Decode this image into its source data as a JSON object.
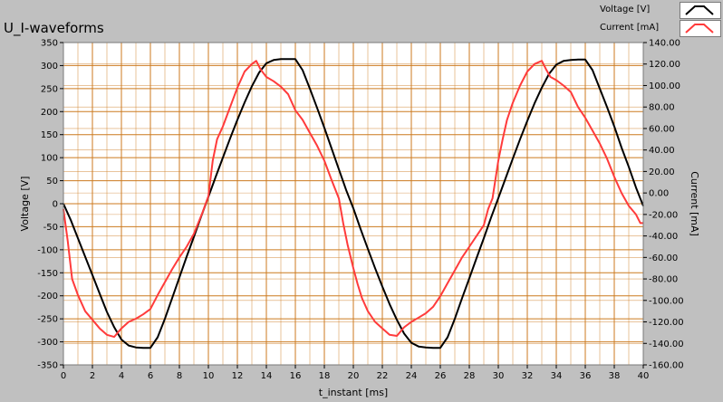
{
  "colors": {
    "background": "#c0c0c0",
    "plot_bg": "#ffffff",
    "grid": "#cc7a1f",
    "voltage": "#000000",
    "current": "#ff3b3b"
  },
  "chart_data": {
    "type": "line",
    "title": "U_I-waveforms",
    "xlabel": "t_instant [ms]",
    "ylabel": "Voltage [V]",
    "y2label": "Current [mA]",
    "xlim": [
      0,
      40
    ],
    "ylim": [
      -350,
      350
    ],
    "y2lim": [
      -160,
      140
    ],
    "x_ticks": [
      "0",
      "2",
      "4",
      "6",
      "8",
      "10",
      "12",
      "14",
      "16",
      "18",
      "20",
      "22",
      "24",
      "26",
      "28",
      "30",
      "32",
      "34",
      "36",
      "38",
      "40"
    ],
    "y_ticks": [
      "350",
      "300",
      "250",
      "200",
      "150",
      "100",
      "50",
      "0",
      "-50",
      "-100",
      "-150",
      "-200",
      "-250",
      "-300",
      "-350"
    ],
    "y2_ticks": [
      "140.00",
      "120.00",
      "100.00",
      "80.00",
      "60.00",
      "40.00",
      "20.00",
      "0.00",
      "-20.00",
      "-40.00",
      "-60.00",
      "-80.00",
      "-100.00",
      "-120.00",
      "-140.00",
      "-160.00"
    ],
    "legend_placement": "top-right",
    "grid": true,
    "series": [
      {
        "name": "Voltage [V]",
        "axis": "left",
        "x": [
          0,
          0.5,
          1,
          1.5,
          2,
          2.5,
          3,
          3.5,
          4,
          4.5,
          5,
          5.5,
          6,
          6.5,
          7,
          7.5,
          8,
          8.5,
          9,
          9.5,
          10,
          10.5,
          11,
          11.5,
          12,
          12.5,
          13,
          13.5,
          14,
          14.5,
          15,
          15.5,
          16,
          16.5,
          17,
          17.5,
          18,
          18.5,
          19,
          19.5,
          20,
          20.5,
          21,
          21.5,
          22,
          22.5,
          23,
          23.5,
          24,
          24.5,
          25,
          25.5,
          26,
          26.5,
          27,
          27.5,
          28,
          28.5,
          29,
          29.5,
          30,
          30.5,
          31,
          31.5,
          32,
          32.5,
          33,
          33.5,
          34,
          34.5,
          35,
          35.5,
          36,
          36.5,
          37,
          37.5,
          38,
          38.5,
          39,
          39.5,
          40
        ],
        "y": [
          0,
          -35,
          -75,
          -115,
          -155,
          -195,
          -235,
          -268,
          -295,
          -308,
          -312,
          -313,
          -313,
          -290,
          -250,
          -205,
          -160,
          -115,
          -72,
          -28,
          15,
          58,
          100,
          142,
          182,
          220,
          255,
          285,
          305,
          312,
          314,
          314,
          314,
          290,
          250,
          208,
          165,
          120,
          75,
          30,
          -10,
          -55,
          -98,
          -140,
          -180,
          -218,
          -252,
          -282,
          -302,
          -310,
          -312,
          -313,
          -313,
          -290,
          -250,
          -205,
          -162,
          -118,
          -75,
          -30,
          12,
          55,
          98,
          140,
          180,
          218,
          252,
          282,
          302,
          310,
          312,
          313,
          313,
          290,
          250,
          210,
          168,
          122,
          80,
          35,
          -5
        ]
      },
      {
        "name": "Current [mA]",
        "axis": "right",
        "x": [
          0,
          0.3,
          0.6,
          1,
          1.5,
          2,
          2.5,
          3,
          3.5,
          4,
          4.5,
          5,
          5.5,
          6,
          6.5,
          7,
          7.5,
          8,
          8.5,
          9,
          9.3,
          9.6,
          10,
          10.3,
          10.6,
          11,
          11.5,
          12,
          12.5,
          13,
          13.3,
          13.6,
          14,
          14.5,
          15,
          15.5,
          16,
          16.5,
          17,
          17.5,
          18,
          18.5,
          19,
          19.3,
          19.6,
          20,
          20.3,
          20.6,
          21,
          21.5,
          22,
          22.5,
          23,
          23.5,
          24,
          24.5,
          25,
          25.5,
          26,
          26.5,
          27,
          27.5,
          28,
          28.5,
          29,
          29.3,
          29.6,
          30,
          30.3,
          30.6,
          31,
          31.5,
          32,
          32.5,
          33,
          33.3,
          33.6,
          34,
          34.5,
          35,
          35.5,
          36,
          36.5,
          37,
          37.5,
          38,
          38.5,
          39,
          39.5,
          39.8,
          40
        ],
        "y": [
          -15,
          -45,
          -80,
          -95,
          -110,
          -118,
          -126,
          -132,
          -134,
          -126,
          -120,
          -117,
          -113,
          -108,
          -95,
          -83,
          -71,
          -60,
          -50,
          -38,
          -28,
          -18,
          -3,
          30,
          50,
          62,
          80,
          98,
          113,
          120,
          123,
          115,
          108,
          104,
          99,
          92,
          77,
          68,
          56,
          44,
          30,
          12,
          -5,
          -28,
          -48,
          -70,
          -85,
          -98,
          -110,
          -120,
          -126,
          -132,
          -133,
          -125,
          -120,
          -116,
          -112,
          -106,
          -96,
          -84,
          -72,
          -60,
          -50,
          -40,
          -30,
          -15,
          -5,
          30,
          50,
          68,
          84,
          100,
          113,
          120,
          123,
          115,
          108,
          105,
          100,
          94,
          80,
          70,
          58,
          46,
          32,
          15,
          0,
          -12,
          -20,
          -28,
          -28
        ]
      }
    ]
  }
}
